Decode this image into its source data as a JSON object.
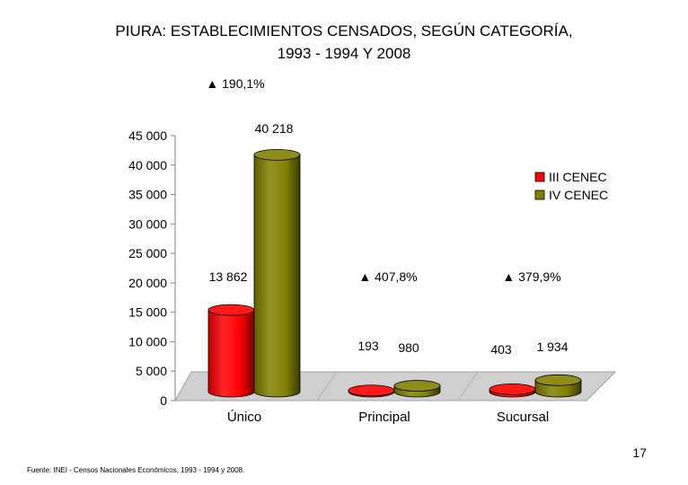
{
  "title_lines": [
    "PIURA: ESTABLECIMIENTOS CENSADOS, SEGÚN CATEGORÍA,",
    "1993 - 1994 Y 2008"
  ],
  "chart_data": {
    "type": "bar",
    "title": "PIURA: ESTABLECIMIENTOS CENSADOS, SEGÚN CATEGORÍA, 1993 - 1994 Y 2008",
    "categories": [
      "Único",
      "Principal",
      "Sucursal"
    ],
    "series": [
      {
        "name": "III CENEC",
        "color": "#ff0000",
        "values": [
          13862,
          193,
          403
        ],
        "labels": [
          "13 862",
          "193",
          "403"
        ]
      },
      {
        "name": "IV CENEC",
        "color": "#808000",
        "values": [
          40218,
          980,
          1934
        ],
        "labels": [
          "40 218",
          "980",
          "1 934"
        ]
      }
    ],
    "growth_annotations": [
      "▲ 190,1%",
      "▲ 407,8%",
      "▲ 379,9%"
    ],
    "ylim": [
      0,
      45000
    ],
    "yticks": [
      0,
      5000,
      10000,
      15000,
      20000,
      25000,
      30000,
      35000,
      40000,
      45000
    ],
    "ytick_labels": [
      "0",
      "5 000",
      "10 000",
      "15 000",
      "20 000",
      "25 000",
      "30 000",
      "35 000",
      "40 000",
      "45 000"
    ],
    "xlabel": "",
    "ylabel": "",
    "grid": false,
    "legend_position": "right",
    "style": "3d-cylinder"
  },
  "page_number": "17",
  "source": "Fuente: INEI - Censos Nacionales Económicos, 1993 - 1994 y 2008."
}
